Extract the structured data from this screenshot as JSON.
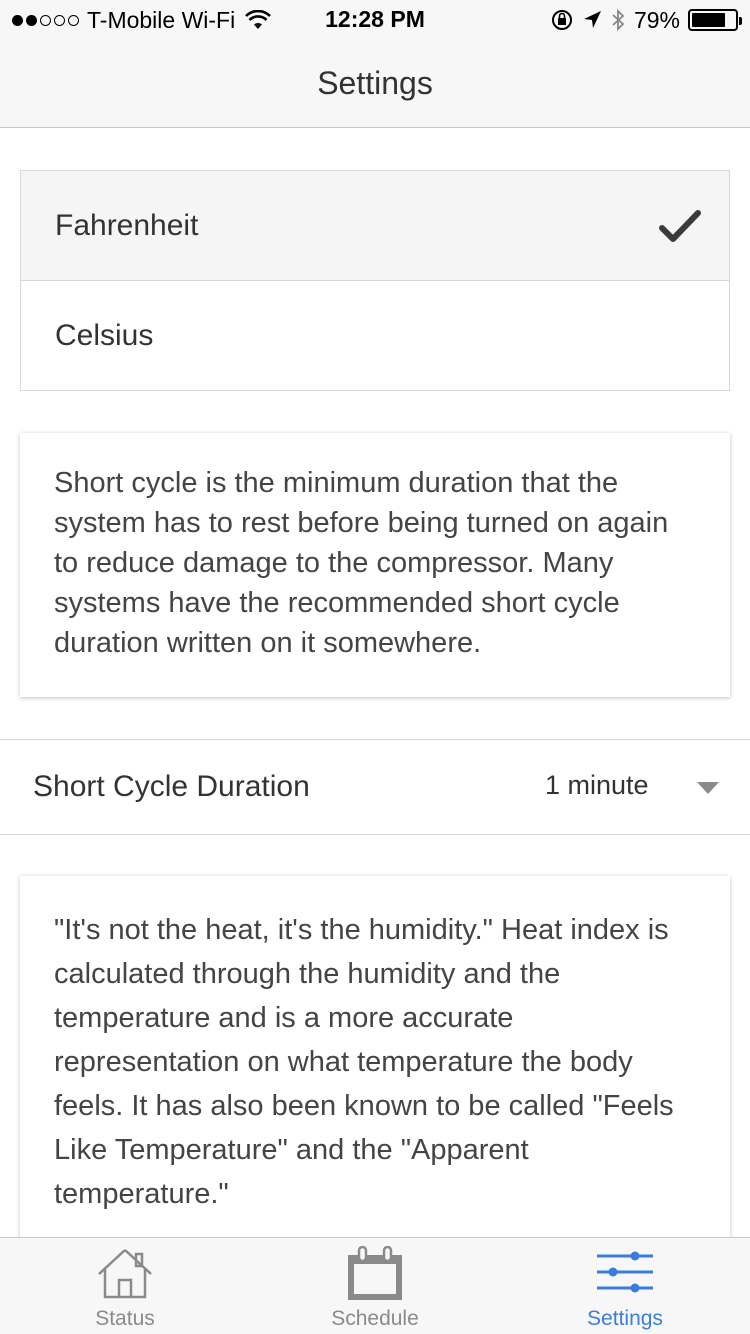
{
  "status_bar": {
    "carrier": "T-Mobile Wi-Fi",
    "time": "12:28 PM",
    "battery": "79%",
    "battery_level": 0.79
  },
  "nav": {
    "title": "Settings"
  },
  "units": {
    "options": [
      {
        "label": "Fahrenheit",
        "selected": true
      },
      {
        "label": "Celsius",
        "selected": false
      }
    ]
  },
  "short_cycle_info": "Short cycle is the minimum duration that the system has to rest before being turned on again to reduce damage to the compressor. Many systems have the recommended short cycle duration written on it somewhere.",
  "short_cycle_setting": {
    "label": "Short Cycle Duration",
    "value": "1 minute"
  },
  "heat_index_info": "\"It's not the heat, it's the humidity.\" Heat index is calculated through the humidity and the temperature and is a more accurate representation on what temperature the body feels. It has also been known to be called \"Feels Like Temperature\" and the \"Apparent temperature.\"",
  "tabs": [
    {
      "label": "Status",
      "icon": "house-icon",
      "active": false
    },
    {
      "label": "Schedule",
      "icon": "calendar-icon",
      "active": false
    },
    {
      "label": "Settings",
      "icon": "sliders-icon",
      "active": true
    }
  ],
  "colors": {
    "accent": "#3b7ddb",
    "inactive": "#8a8a8a"
  }
}
